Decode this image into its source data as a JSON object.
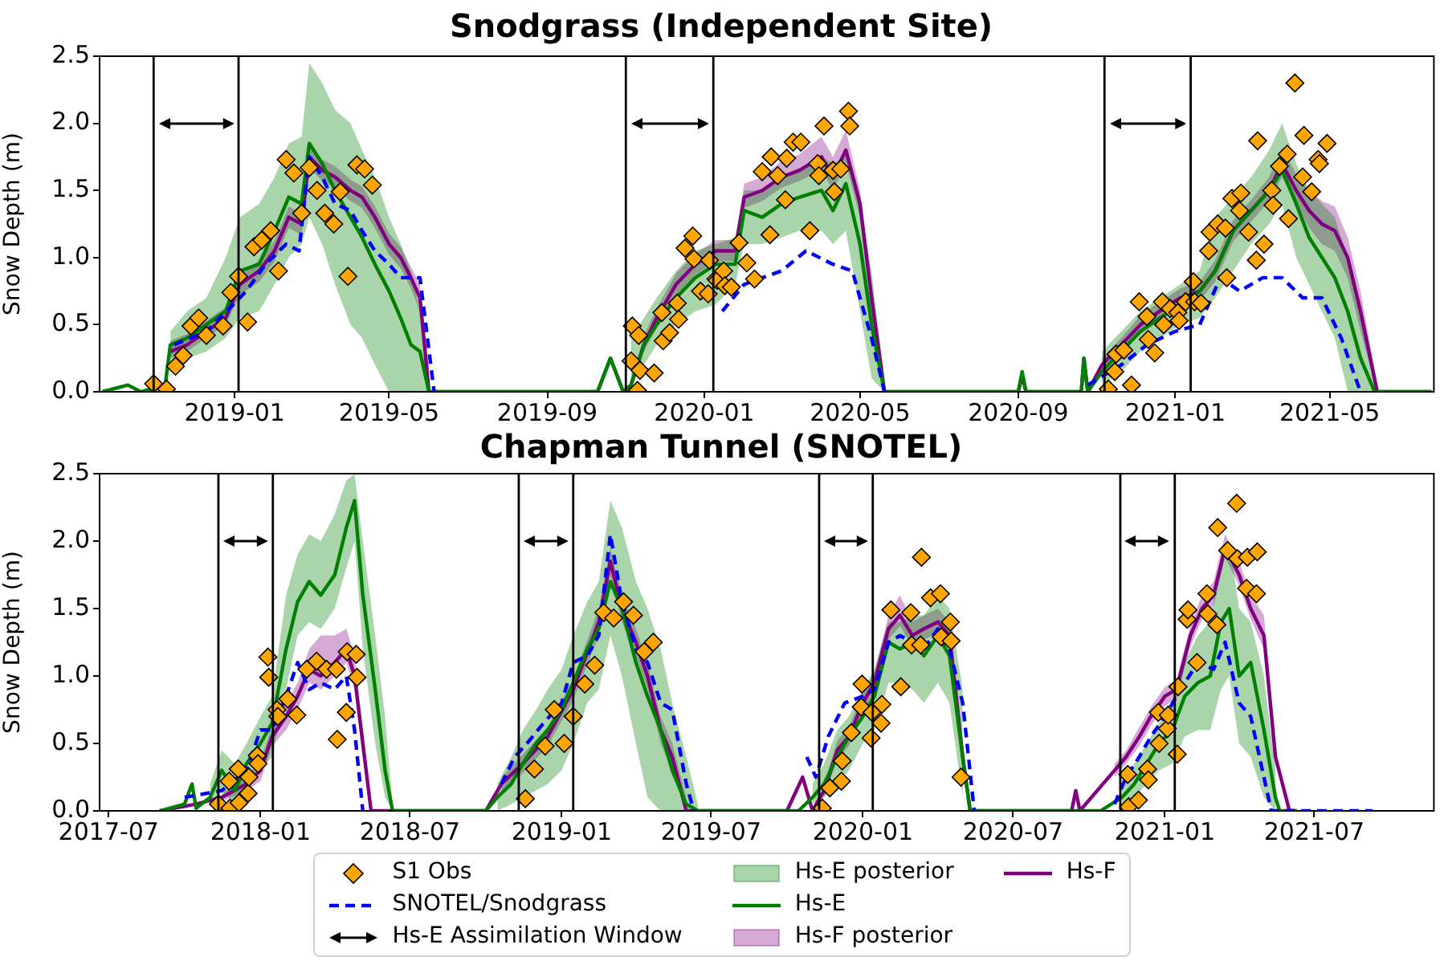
{
  "chart_data": [
    {
      "type": "line",
      "title": "Snodgrass (Independent Site)",
      "ylabel": "Snow Depth (m)",
      "xlim": [
        "2018-09-18",
        "2021-07-21"
      ],
      "xticks": [
        "2019-01",
        "2019-05",
        "2019-09",
        "2020-01",
        "2020-05",
        "2020-09",
        "2021-01",
        "2021-05"
      ],
      "ylim": [
        0,
        2.5
      ],
      "yticks": [
        {
          "value": 0,
          "label": "0.0"
        },
        0.5,
        {
          "value": 1,
          "label": "1.0"
        },
        1.5,
        {
          "value": 2,
          "label": "2.0"
        },
        2.5
      ],
      "ref_lines": [
        {
          "axis": "x",
          "value": "2018-10-30",
          "color": "#000000"
        },
        {
          "axis": "x",
          "value": "2019-01-04",
          "color": "#000000"
        },
        {
          "axis": "x",
          "value": "2019-11-01",
          "color": "#000000"
        },
        {
          "axis": "x",
          "value": "2020-01-08",
          "color": "#000000"
        },
        {
          "axis": "x",
          "value": "2020-11-07",
          "color": "#000000"
        },
        {
          "axis": "x",
          "value": "2021-01-13",
          "color": "#000000"
        }
      ],
      "series": [
        {
          "type": "scatter",
          "marker": "diamond",
          "color": "#ffa500",
          "x": [
            "2018-10-30",
            "2018-11-09",
            "2018-11-16",
            "2018-11-22",
            "2018-11-28",
            "2018-12-04",
            "2018-12-10",
            "2018-12-23",
            "2018-12-29",
            "2019-01-04",
            "2019-01-11",
            "2019-01-16",
            "2019-01-22",
            "2019-01-29",
            "2019-02-04",
            "2019-02-10",
            "2019-02-16",
            "2019-02-22",
            "2019-02-28",
            "2019-03-06",
            "2019-03-12",
            "2019-03-19",
            "2019-03-24",
            "2019-03-30",
            "2019-04-06",
            "2019-04-12",
            "2019-04-18",
            "2019-11-05",
            "2019-11-06",
            "2019-11-10",
            "2019-11-11",
            "2019-11-12",
            "2019-11-23",
            "2019-11-29",
            "2019-11-30",
            "2019-12-05",
            "2019-12-11",
            "2019-12-12",
            "2019-12-17",
            "2019-12-23",
            "2019-12-24",
            "2019-12-29",
            "2020-01-04",
            "2020-01-05",
            "2020-01-10",
            "2020-01-11",
            "2020-01-16",
            "2020-01-17",
            "2020-01-22",
            "2020-01-28",
            "2020-02-03",
            "2020-02-09",
            "2020-02-15",
            "2020-02-21",
            "2020-02-22",
            "2020-02-27",
            "2020-03-04",
            "2020-03-05",
            "2020-03-10",
            "2020-03-16",
            "2020-03-23",
            "2020-03-29",
            "2020-03-30",
            "2020-04-03",
            "2020-04-10",
            "2020-04-11",
            "2020-04-16",
            "2020-04-22",
            "2020-04-23",
            "2020-11-10",
            "2020-11-15",
            "2020-11-16",
            "2020-11-22",
            "2020-11-28",
            "2020-12-04",
            "2020-12-10",
            "2020-12-11",
            "2020-12-16",
            "2020-12-22",
            "2020-12-23",
            "2020-12-28",
            "2021-01-03",
            "2021-01-04",
            "2021-01-09",
            "2021-01-15",
            "2021-01-16",
            "2021-01-21",
            "2021-01-27",
            "2021-01-28",
            "2021-02-03",
            "2021-02-09",
            "2021-02-10",
            "2021-02-14",
            "2021-02-20",
            "2021-02-21",
            "2021-02-27",
            "2021-03-05",
            "2021-03-06",
            "2021-03-11",
            "2021-03-17",
            "2021-03-18",
            "2021-03-23",
            "2021-03-29",
            "2021-03-30",
            "2021-04-04",
            "2021-04-10",
            "2021-04-11",
            "2021-04-17",
            "2021-04-22",
            "2021-04-23",
            "2021-04-29"
          ],
          "values": [
            0.06,
            0.02,
            0.19,
            0.27,
            0.49,
            0.55,
            0.42,
            0.49,
            0.74,
            0.86,
            0.52,
            1.08,
            1.13,
            1.2,
            0.9,
            1.73,
            1.63,
            1.33,
            1.67,
            1.5,
            1.33,
            1.25,
            1.49,
            0.86,
            1.69,
            1.66,
            1.54,
            0.23,
            0.49,
            0.01,
            0.42,
            0.16,
            0.14,
            0.59,
            0.38,
            0.44,
            0.66,
            0.54,
            1.07,
            1.16,
            0.99,
            0.75,
            0.73,
            0.98,
            0.84,
            0.83,
            0.9,
            0.79,
            0.78,
            1.11,
            0.96,
            0.84,
            1.64,
            1.17,
            1.75,
            1.61,
            1.43,
            1.74,
            1.86,
            1.86,
            1.2,
            1.7,
            1.61,
            1.98,
            1.65,
            1.49,
            1.66,
            2.09,
            1.98,
            0.02,
            0.15,
            0.28,
            0.31,
            0.05,
            0.67,
            0.56,
            0.39,
            0.29,
            0.67,
            0.5,
            0.62,
            0.59,
            0.53,
            0.67,
            0.82,
            0.67,
            0.66,
            1.05,
            1.19,
            1.25,
            1.22,
            0.85,
            1.44,
            1.35,
            1.48,
            1.19,
            0.98,
            1.87,
            1.1,
            1.5,
            1.39,
            1.68,
            1.77,
            1.29,
            2.3,
            1.6,
            1.91,
            1.49,
            1.73,
            1.7,
            1.85
          ]
        },
        {
          "type": "line",
          "marker": "none",
          "line_style": "dashed",
          "color": "#0000ff",
          "x": [
            "2018-11-15",
            "2018-12-10",
            "2019-01-05",
            "2019-01-10",
            "2019-01-25",
            "2019-02-10",
            "2019-02-20",
            "2019-02-28",
            "2019-03-10",
            "2019-03-20",
            "2019-04-01",
            "2019-04-10",
            "2019-04-20",
            "2019-05-01",
            "2019-05-10",
            "2019-05-25",
            "2019-06-05",
            "2019-10-01",
            "2020-01-15",
            "2020-02-01",
            "2020-02-15",
            "2020-03-01",
            "2020-03-20",
            "2020-04-10",
            "2020-04-25",
            "2020-05-10",
            "2020-05-20",
            "2020-08-01",
            "2020-10-25",
            "2020-11-20",
            "2020-12-10",
            "2021-01-01",
            "2021-01-20",
            "2021-02-05",
            "2021-02-20",
            "2021-03-10",
            "2021-03-25",
            "2021-04-10",
            "2021-04-25",
            "2021-05-10",
            "2021-05-25"
          ],
          "values": [
            0.35,
            0.45,
            0.7,
            0.75,
            0.95,
            1.1,
            1.05,
            1.75,
            1.6,
            1.4,
            1.35,
            1.2,
            1.05,
            0.95,
            0.85,
            0.85,
            0,
            null,
            0.6,
            0.8,
            0.85,
            0.9,
            1.05,
            0.95,
            0.9,
            0.4,
            0,
            null,
            0.05,
            0.2,
            0.35,
            0.45,
            0.5,
            0.85,
            0.75,
            0.85,
            0.85,
            0.7,
            0.7,
            0.4,
            0
          ]
        },
        {
          "type": "line",
          "marker": "none",
          "line_style": "solid",
          "color": "#008000",
          "x": [
            "2018-09-20",
            "2018-10-10",
            "2018-10-20",
            "2018-11-08",
            "2018-11-12",
            "2018-11-25",
            "2018-12-10",
            "2018-12-25",
            "2019-01-05",
            "2019-01-20",
            "2019-02-01",
            "2019-02-12",
            "2019-02-22",
            "2019-02-28",
            "2019-03-10",
            "2019-03-20",
            "2019-04-01",
            "2019-04-10",
            "2019-04-20",
            "2019-05-01",
            "2019-05-10",
            "2019-05-18",
            "2019-05-25",
            "2019-06-01",
            "2019-10-10",
            "2019-10-20",
            "2019-10-30",
            "2019-11-05",
            "2019-11-15",
            "2019-11-25",
            "2019-12-10",
            "2019-12-25",
            "2020-01-10",
            "2020-01-25",
            "2020-02-01",
            "2020-02-15",
            "2020-03-01",
            "2020-03-15",
            "2020-04-01",
            "2020-04-10",
            "2020-04-20",
            "2020-05-01",
            "2020-05-10",
            "2020-05-20",
            "2020-09-01",
            "2020-09-04",
            "2020-09-07",
            "2020-10-20",
            "2020-10-22",
            "2020-10-25",
            "2020-11-05",
            "2020-11-20",
            "2020-12-05",
            "2020-12-20",
            "2021-01-05",
            "2021-01-20",
            "2021-02-01",
            "2021-02-15",
            "2021-03-01",
            "2021-03-15",
            "2021-03-25",
            "2021-04-05",
            "2021-04-15",
            "2021-04-25",
            "2021-05-05",
            "2021-05-15",
            "2021-05-25",
            "2021-06-05",
            "2021-07-19"
          ],
          "values": [
            0,
            0.05,
            0,
            0.05,
            0.35,
            0.4,
            0.5,
            0.6,
            0.9,
            0.95,
            1.2,
            1.45,
            1.4,
            1.85,
            1.7,
            1.5,
            1.3,
            1.15,
            0.95,
            0.75,
            0.55,
            0.35,
            0.3,
            0,
            0,
            0.25,
            0,
            0.05,
            0.35,
            0.5,
            0.7,
            0.85,
            0.95,
            0.95,
            1.35,
            1.3,
            1.4,
            1.45,
            1.5,
            1.35,
            1.55,
            1.1,
            0.5,
            0,
            0,
            0.15,
            0,
            0,
            0.25,
            0,
            0.15,
            0.3,
            0.45,
            0.55,
            0.65,
            0.75,
            0.9,
            1.2,
            1.35,
            1.5,
            1.65,
            1.4,
            1.15,
            1.0,
            0.85,
            0.6,
            0.25,
            0,
            0
          ],
          "lower": [
            null,
            null,
            null,
            null,
            0.2,
            0.25,
            0.3,
            0.4,
            0.55,
            0.6,
            0.8,
            1.0,
            1.1,
            1.3,
            1.1,
            0.8,
            0.5,
            0.4,
            0.2,
            0,
            0,
            0,
            0,
            0,
            null,
            null,
            null,
            0.05,
            0.2,
            0.35,
            0.5,
            0.6,
            0.65,
            0.8,
            1.1,
            1.1,
            1.15,
            1.2,
            1.2,
            1.1,
            1.2,
            0.6,
            0.1,
            0,
            null,
            null,
            null,
            null,
            null,
            null,
            0.05,
            0.15,
            0.3,
            0.4,
            0.5,
            0.55,
            0.7,
            0.9,
            1.1,
            1.25,
            1.4,
            1.0,
            0.8,
            0.6,
            0.4,
            0,
            0,
            0,
            null
          ],
          "upper": [
            null,
            null,
            null,
            null,
            0.45,
            0.6,
            0.7,
            1.0,
            1.3,
            1.4,
            1.6,
            1.85,
            1.9,
            2.45,
            2.3,
            2.1,
            2.0,
            1.8,
            1.6,
            1.3,
            1.1,
            0.9,
            0.6,
            0.2,
            null,
            null,
            null,
            0.4,
            0.55,
            0.7,
            0.9,
            1.05,
            1.1,
            1.15,
            1.5,
            1.5,
            1.6,
            1.65,
            1.75,
            1.7,
            1.75,
            1.4,
            0.9,
            0.1,
            null,
            null,
            null,
            null,
            null,
            null,
            0.3,
            0.45,
            0.6,
            0.7,
            0.8,
            0.9,
            1.3,
            1.45,
            1.6,
            1.8,
            2.0,
            1.7,
            1.5,
            1.4,
            1.3,
            1.0,
            0.6,
            0.1,
            null
          ]
        },
        {
          "type": "line",
          "marker": "none",
          "line_style": "solid",
          "color": "#800080",
          "x": [
            "2018-11-12",
            "2018-11-25",
            "2018-12-10",
            "2018-12-25",
            "2019-01-05",
            "2019-01-20",
            "2019-02-01",
            "2019-02-12",
            "2019-02-22",
            "2019-02-28",
            "2019-03-10",
            "2019-03-20",
            "2019-04-01",
            "2019-04-10",
            "2019-04-20",
            "2019-05-01",
            "2019-05-10",
            "2019-05-18",
            "2019-05-25",
            "2019-06-01",
            "2019-10-10",
            "2019-10-20",
            "2019-10-30",
            "2019-11-05",
            "2019-11-15",
            "2019-11-25",
            "2019-12-10",
            "2019-12-25",
            "2020-01-10",
            "2020-01-25",
            "2020-02-01",
            "2020-02-15",
            "2020-03-01",
            "2020-03-15",
            "2020-04-01",
            "2020-04-10",
            "2020-04-20",
            "2020-05-01",
            "2020-05-10",
            "2020-05-20",
            "2020-09-01",
            "2020-09-04",
            "2020-09-07",
            "2020-10-20",
            "2020-10-22",
            "2020-10-25",
            "2020-11-05",
            "2020-11-20",
            "2020-12-05",
            "2020-12-20",
            "2021-01-05",
            "2021-01-20",
            "2021-02-01",
            "2021-02-15",
            "2021-03-01",
            "2021-03-15",
            "2021-03-25",
            "2021-04-05",
            "2021-04-15",
            "2021-04-25",
            "2021-05-05",
            "2021-05-15",
            "2021-05-25",
            "2021-06-07",
            "2021-07-19"
          ],
          "values": [
            0.3,
            0.35,
            0.45,
            0.55,
            0.8,
            0.9,
            1.05,
            1.3,
            1.25,
            1.75,
            1.65,
            1.6,
            1.5,
            1.45,
            1.3,
            1.1,
            1.0,
            0.85,
            0.7,
            0,
            0,
            0.25,
            0,
            0.05,
            0.35,
            0.55,
            0.8,
            0.95,
            1.05,
            1.05,
            1.45,
            1.5,
            1.6,
            1.65,
            1.75,
            1.6,
            1.8,
            1.4,
            0.7,
            0,
            0,
            0.12,
            0,
            0,
            0.25,
            0,
            0.2,
            0.35,
            0.5,
            0.6,
            0.7,
            0.75,
            0.9,
            1.2,
            1.35,
            1.5,
            1.7,
            1.5,
            1.35,
            1.25,
            1.2,
            1.0,
            0.6,
            0,
            0
          ],
          "lower": [
            0.25,
            0.3,
            0.4,
            0.5,
            0.72,
            0.82,
            0.97,
            1.22,
            1.17,
            1.67,
            1.57,
            1.52,
            1.42,
            1.37,
            1.22,
            1.02,
            0.92,
            0.77,
            0.6,
            0,
            null,
            null,
            null,
            0.05,
            0.3,
            0.48,
            0.72,
            0.87,
            0.97,
            0.97,
            1.37,
            1.42,
            1.52,
            1.57,
            1.65,
            1.5,
            1.7,
            1.3,
            0.6,
            0,
            null,
            null,
            null,
            null,
            null,
            null,
            0.15,
            0.3,
            0.43,
            0.53,
            0.63,
            0.68,
            0.82,
            1.12,
            1.27,
            1.42,
            1.6,
            1.4,
            1.22,
            1.1,
            1.05,
            0.85,
            0.45,
            0,
            null
          ],
          "upper": [
            0.38,
            0.43,
            0.53,
            0.63,
            0.88,
            0.98,
            1.13,
            1.38,
            1.33,
            1.83,
            1.73,
            1.68,
            1.58,
            1.53,
            1.38,
            1.18,
            1.08,
            0.93,
            0.8,
            0.05,
            null,
            null,
            null,
            0.05,
            0.42,
            0.62,
            0.88,
            1.03,
            1.13,
            1.13,
            1.55,
            1.6,
            1.72,
            1.77,
            1.9,
            1.75,
            1.95,
            1.5,
            0.8,
            0.05,
            null,
            null,
            null,
            null,
            null,
            null,
            0.25,
            0.4,
            0.57,
            0.67,
            0.77,
            0.82,
            0.98,
            1.28,
            1.43,
            1.6,
            1.82,
            1.62,
            1.5,
            1.42,
            1.38,
            1.15,
            0.75,
            0.05,
            null
          ]
        }
      ]
    },
    {
      "type": "line",
      "title": "Chapman Tunnel (SNOTEL)",
      "ylabel": "Snow Depth (m)",
      "legend": "bottom",
      "annotations": [
        "Hs-E posterior",
        "Hs-F posterior"
      ],
      "xlim": [
        "2017-06-20",
        "2021-11-23"
      ],
      "xticks": [
        "2017-07",
        "2018-01",
        "2018-07",
        "2019-01",
        "2019-07",
        "2020-01",
        "2020-07",
        "2021-01",
        "2021-07"
      ],
      "ylim": [
        0,
        2.5
      ],
      "yticks": [
        {
          "value": 0,
          "label": "0.0"
        },
        0.5,
        {
          "value": 1,
          "label": "1.0"
        },
        1.5,
        {
          "value": 2,
          "label": "2.0"
        },
        2.5
      ],
      "ref_lines": [
        {
          "axis": "x",
          "value": "2017-11-11",
          "color": "#000000",
          "label": "Hs-E Assimilation Window"
        },
        {
          "axis": "x",
          "value": "2018-01-16",
          "color": "#000000"
        },
        {
          "axis": "x",
          "value": "2018-11-10",
          "color": "#000000"
        },
        {
          "axis": "x",
          "value": "2019-01-15",
          "color": "#000000"
        },
        {
          "axis": "x",
          "value": "2019-11-09",
          "color": "#000000"
        },
        {
          "axis": "x",
          "value": "2020-01-13",
          "color": "#000000"
        },
        {
          "axis": "x",
          "value": "2020-11-08",
          "color": "#000000"
        },
        {
          "axis": "x",
          "value": "2021-01-13",
          "color": "#000000"
        }
      ],
      "series": [
        {
          "name": "S1 Obs",
          "type": "scatter",
          "marker": "diamond",
          "color": "#ffa500",
          "x": [
            "2017-11-11",
            "2017-11-24",
            "2017-11-25",
            "2017-12-05",
            "2017-12-06",
            "2017-12-17",
            "2017-12-18",
            "2017-12-28",
            "2017-12-29",
            "2018-01-10",
            "2018-01-11",
            "2018-01-21",
            "2018-01-22",
            "2018-02-03",
            "2018-02-14",
            "2018-02-26",
            "2018-03-10",
            "2018-03-22",
            "2018-04-03",
            "2018-04-04",
            "2018-04-15",
            "2018-04-16",
            "2018-04-27",
            "2018-04-28",
            "2018-11-18",
            "2018-11-29",
            "2018-12-12",
            "2018-12-23",
            "2019-01-04",
            "2019-01-15",
            "2019-01-29",
            "2019-02-10",
            "2019-02-21",
            "2019-03-05",
            "2019-03-17",
            "2019-03-29",
            "2019-04-11",
            "2019-04-22",
            "2019-11-13",
            "2019-11-22",
            "2019-12-06",
            "2019-12-07",
            "2019-12-18",
            "2019-12-30",
            "2019-12-31",
            "2020-01-11",
            "2020-01-12",
            "2020-01-23",
            "2020-01-24",
            "2020-02-04",
            "2020-02-16",
            "2020-02-28",
            "2020-02-29",
            "2020-03-11",
            "2020-03-12",
            "2020-03-23",
            "2020-04-04",
            "2020-04-05",
            "2020-04-16",
            "2020-04-17",
            "2020-04-29",
            "2020-11-17",
            "2020-11-18",
            "2020-11-30",
            "2020-12-11",
            "2020-12-12",
            "2020-12-24",
            "2020-12-25",
            "2021-01-04",
            "2021-01-05",
            "2021-01-16",
            "2021-01-17",
            "2021-01-28",
            "2021-01-29",
            "2021-02-09",
            "2021-02-21",
            "2021-02-22",
            "2021-03-05",
            "2021-03-06",
            "2021-03-18",
            "2021-03-29",
            "2021-03-30",
            "2021-04-10",
            "2021-04-11",
            "2021-04-22",
            "2021-04-23"
          ],
          "values": [
            0.05,
            0.22,
            0.02,
            0.31,
            0.06,
            0.13,
            0.25,
            0.41,
            0.35,
            1.14,
            0.99,
            0.75,
            0.7,
            0.83,
            0.71,
            1.05,
            1.11,
            1.05,
            1.05,
            0.53,
            0.73,
            1.18,
            1.16,
            0.99,
            0.09,
            0.31,
            0.48,
            0.75,
            0.5,
            0.7,
            0.94,
            1.08,
            1.47,
            1.43,
            1.55,
            1.45,
            1.18,
            1.25,
            0.02,
            0.17,
            0.22,
            0.37,
            0.58,
            0.77,
            0.94,
            0.54,
            0.73,
            0.65,
            0.79,
            1.49,
            0.92,
            1.47,
            1.23,
            1.23,
            1.88,
            1.58,
            1.61,
            1.29,
            1.4,
            1.26,
            0.25,
            0.27,
            0.03,
            0.08,
            0.31,
            0.23,
            0.73,
            0.5,
            0.61,
            0.71,
            0.42,
            0.92,
            1.42,
            1.49,
            1.1,
            1.61,
            1.46,
            1.38,
            2.1,
            1.93,
            2.28,
            1.87,
            1.65,
            1.88,
            1.61,
            1.92
          ]
        },
        {
          "name": "SNOTEL/Snodgrass",
          "type": "line",
          "marker": "none",
          "line_style": "dashed",
          "color": "#0000ff",
          "x": [
            "2017-10-01",
            "2017-11-15",
            "2017-12-15",
            "2018-01-01",
            "2018-01-15",
            "2018-02-01",
            "2018-02-15",
            "2018-03-01",
            "2018-03-15",
            "2018-04-01",
            "2018-04-15",
            "2018-04-25",
            "2018-05-05",
            "2018-08-01",
            "2018-10-20",
            "2018-11-05",
            "2018-11-20",
            "2018-12-10",
            "2019-01-01",
            "2019-01-15",
            "2019-02-01",
            "2019-02-15",
            "2019-03-01",
            "2019-03-15",
            "2019-04-01",
            "2019-04-15",
            "2019-05-01",
            "2019-05-15",
            "2019-06-01",
            "2019-06-10",
            "2019-08-01",
            "2019-10-25",
            "2019-11-05",
            "2019-11-20",
            "2019-12-10",
            "2020-01-01",
            "2020-01-15",
            "2020-02-01",
            "2020-02-15",
            "2020-03-01",
            "2020-03-15",
            "2020-04-01",
            "2020-04-15",
            "2020-05-01",
            "2020-05-15",
            "2020-08-01",
            "2020-11-01",
            "2020-11-15",
            "2020-12-01",
            "2020-12-15",
            "2021-01-01",
            "2021-01-20",
            "2021-02-10",
            "2021-03-01",
            "2021-03-15",
            "2021-04-01",
            "2021-04-15",
            "2021-05-01",
            "2021-05-10",
            "2021-06-01",
            "2021-09-10"
          ],
          "values": [
            0.1,
            0.15,
            0.3,
            0.6,
            0.6,
            0.85,
            1.1,
            0.9,
            0.95,
            0.9,
            1.0,
            0.6,
            0,
            null,
            0.2,
            0.4,
            0.5,
            0.65,
            0.8,
            1.1,
            1.15,
            1.3,
            2.05,
            1.55,
            1.2,
            1.1,
            0.8,
            0.75,
            0.2,
            0,
            null,
            0.4,
            0.25,
            0.55,
            0.8,
            0.85,
            0.9,
            1.25,
            1.3,
            1.25,
            1.2,
            1.35,
            1.2,
            0.8,
            0,
            null,
            0.05,
            0.25,
            0.4,
            0.55,
            0.7,
            0.9,
            1.1,
            1.05,
            1.25,
            0.8,
            0.7,
            0.25,
            0,
            0,
            0
          ]
        },
        {
          "name": "Hs-E",
          "type": "line",
          "marker": "none",
          "line_style": "solid",
          "color": "#008000",
          "x": [
            "2017-09-01",
            "2017-10-01",
            "2017-10-10",
            "2017-10-15",
            "2017-11-01",
            "2017-11-15",
            "2017-12-01",
            "2017-12-15",
            "2018-01-01",
            "2018-01-15",
            "2018-02-01",
            "2018-02-15",
            "2018-03-01",
            "2018-03-15",
            "2018-04-01",
            "2018-04-15",
            "2018-04-25",
            "2018-05-05",
            "2018-05-20",
            "2018-06-01",
            "2018-06-10",
            "2018-10-01",
            "2018-10-15",
            "2018-11-01",
            "2018-11-15",
            "2018-12-01",
            "2018-12-15",
            "2019-01-01",
            "2019-01-15",
            "2019-02-01",
            "2019-02-15",
            "2019-03-01",
            "2019-03-15",
            "2019-04-01",
            "2019-04-15",
            "2019-05-01",
            "2019-05-15",
            "2019-06-01",
            "2019-06-15",
            "2019-10-15",
            "2019-11-01",
            "2019-11-15",
            "2019-12-01",
            "2019-12-15",
            "2020-01-01",
            "2020-01-15",
            "2020-02-01",
            "2020-02-15",
            "2020-03-01",
            "2020-03-15",
            "2020-04-01",
            "2020-04-15",
            "2020-05-01",
            "2020-05-10",
            "2020-10-15",
            "2020-11-10",
            "2020-11-25",
            "2020-12-10",
            "2020-12-25",
            "2021-01-10",
            "2021-01-25",
            "2021-02-10",
            "2021-02-25",
            "2021-03-10",
            "2021-03-20",
            "2021-04-01",
            "2021-04-15",
            "2021-05-01",
            "2021-05-15",
            "2021-05-20",
            "2021-06-10"
          ],
          "values": [
            0,
            0.05,
            0.2,
            0.02,
            0.1,
            0.3,
            0.15,
            0.35,
            0.5,
            0.65,
            1.2,
            1.55,
            1.7,
            1.6,
            1.75,
            2.1,
            2.3,
            1.6,
            0.9,
            0.3,
            0,
            0,
            0.1,
            0.2,
            0.35,
            0.5,
            0.6,
            0.75,
            0.95,
            1.2,
            1.35,
            1.7,
            1.5,
            1.1,
            0.85,
            0.6,
            0.3,
            0.05,
            0,
            0,
            0.1,
            0.2,
            0.4,
            0.55,
            0.7,
            0.85,
            1.25,
            1.2,
            1.25,
            1.15,
            1.3,
            1.15,
            0.4,
            0,
            0,
            0.1,
            0.2,
            0.35,
            0.5,
            0.6,
            0.85,
            0.95,
            1.0,
            1.4,
            1.5,
            1.0,
            1.1,
            0.6,
            0.1,
            0,
            0
          ],
          "lower": [
            null,
            null,
            null,
            null,
            0.05,
            0.15,
            0.05,
            0.15,
            0.3,
            0.4,
            0.9,
            1.3,
            1.4,
            1.35,
            1.5,
            1.8,
            2.0,
            1.2,
            0.5,
            0.1,
            0,
            null,
            0,
            0.05,
            0.1,
            0.15,
            0.2,
            0.3,
            0.5,
            0.8,
            0.9,
            1.3,
            1.0,
            0.5,
            0.1,
            0,
            0,
            0,
            0,
            null,
            0.05,
            0.1,
            0.2,
            0.3,
            0.5,
            0.6,
            0.95,
            0.95,
            0.9,
            0.8,
            0.95,
            0.8,
            0.1,
            null,
            null,
            0.05,
            0.1,
            0.2,
            0.3,
            0.35,
            0.55,
            0.6,
            0.6,
            0.9,
            1.0,
            0.5,
            0.4,
            0.1,
            0,
            null,
            null
          ],
          "upper": [
            null,
            null,
            null,
            null,
            0.2,
            0.45,
            0.35,
            0.5,
            0.7,
            0.85,
            1.6,
            1.9,
            2.05,
            2.0,
            2.2,
            2.45,
            2.5,
            2.0,
            1.3,
            0.7,
            0.05,
            null,
            0.2,
            0.4,
            0.6,
            0.75,
            0.9,
            1.05,
            1.3,
            1.55,
            1.7,
            2.3,
            2.1,
            1.7,
            1.5,
            1.2,
            0.8,
            0.4,
            0.05,
            null,
            0.2,
            0.35,
            0.6,
            0.7,
            0.9,
            1.05,
            1.4,
            1.4,
            1.45,
            1.45,
            1.6,
            1.5,
            0.9,
            null,
            null,
            0.2,
            0.35,
            0.5,
            0.65,
            0.8,
            1.1,
            1.3,
            1.4,
            1.9,
            2.0,
            1.5,
            1.4,
            1.0,
            0.3,
            null,
            null
          ]
        },
        {
          "name": "Hs-F",
          "type": "line",
          "marker": "none",
          "line_style": "solid",
          "color": "#800080",
          "x": [
            "2017-09-01",
            "2017-10-15",
            "2017-11-15",
            "2017-12-15",
            "2018-01-01",
            "2018-01-15",
            "2018-02-01",
            "2018-02-15",
            "2018-03-01",
            "2018-03-15",
            "2018-04-01",
            "2018-04-15",
            "2018-04-25",
            "2018-05-05",
            "2018-05-15",
            "2018-10-01",
            "2018-10-20",
            "2018-11-15",
            "2018-12-15",
            "2019-01-15",
            "2019-02-15",
            "2019-03-01",
            "2019-03-15",
            "2019-04-01",
            "2019-04-15",
            "2019-05-01",
            "2019-05-15",
            "2019-06-01",
            "2019-10-01",
            "2019-10-20",
            "2019-11-01",
            "2019-11-15",
            "2019-12-01",
            "2019-12-15",
            "2020-01-01",
            "2020-01-15",
            "2020-02-01",
            "2020-02-15",
            "2020-03-01",
            "2020-03-15",
            "2020-04-01",
            "2020-04-15",
            "2020-05-01",
            "2020-05-10",
            "2020-09-10",
            "2020-09-15",
            "2020-09-20",
            "2020-11-01",
            "2020-11-15",
            "2020-12-01",
            "2020-12-15",
            "2021-01-01",
            "2021-01-15",
            "2021-02-01",
            "2021-02-15",
            "2021-03-01",
            "2021-03-15",
            "2021-04-01",
            "2021-04-15",
            "2021-05-01",
            "2021-05-15",
            "2021-06-01",
            "2021-06-10"
          ],
          "values": [
            0,
            0.05,
            0.1,
            0.2,
            0.3,
            0.55,
            0.7,
            0.85,
            1.05,
            1.0,
            1.1,
            1.2,
            1.0,
            0.5,
            0,
            0,
            0.2,
            0.35,
            0.55,
            0.9,
            1.4,
            1.85,
            1.5,
            1.25,
            1.0,
            0.6,
            0.4,
            0,
            0,
            0.25,
            0,
            0.15,
            0.45,
            0.55,
            0.8,
            0.95,
            1.35,
            1.45,
            1.3,
            1.35,
            1.4,
            1.3,
            0.4,
            0,
            0,
            0.15,
            0,
            0.3,
            0.4,
            0.55,
            0.7,
            0.85,
            0.9,
            1.3,
            1.5,
            1.6,
            1.95,
            1.75,
            1.5,
            1.3,
            0.4,
            0,
            0
          ],
          "lower": [
            null,
            null,
            0.07,
            0.15,
            0.22,
            0.48,
            0.6,
            0.75,
            0.95,
            0.9,
            1.0,
            1.1,
            0.9,
            0.4,
            0,
            null,
            0.15,
            0.28,
            0.48,
            0.82,
            1.3,
            1.75,
            1.4,
            1.15,
            0.9,
            0.5,
            0.3,
            0,
            null,
            null,
            null,
            0.1,
            0.38,
            0.48,
            0.72,
            0.87,
            1.27,
            1.37,
            1.22,
            1.27,
            1.32,
            1.22,
            0.3,
            null,
            null,
            null,
            null,
            0.25,
            0.35,
            0.48,
            0.63,
            0.78,
            0.83,
            1.22,
            1.42,
            1.52,
            1.88,
            1.67,
            1.42,
            1.2,
            0.3,
            null,
            null
          ],
          "upper": [
            null,
            null,
            0.13,
            0.25,
            0.38,
            0.62,
            0.8,
            0.95,
            1.2,
            1.3,
            1.3,
            1.35,
            1.15,
            0.6,
            0.05,
            null,
            0.25,
            0.42,
            0.62,
            0.98,
            1.5,
            1.95,
            1.6,
            1.35,
            1.1,
            0.7,
            0.5,
            0.1,
            null,
            null,
            null,
            0.2,
            0.52,
            0.62,
            0.88,
            1.03,
            1.45,
            1.6,
            1.4,
            1.45,
            1.5,
            1.4,
            0.5,
            null,
            null,
            null,
            null,
            0.35,
            0.45,
            0.62,
            0.77,
            0.92,
            0.97,
            1.38,
            1.6,
            1.7,
            2.05,
            1.85,
            1.6,
            1.45,
            0.5,
            null,
            null
          ]
        }
      ]
    }
  ]
}
